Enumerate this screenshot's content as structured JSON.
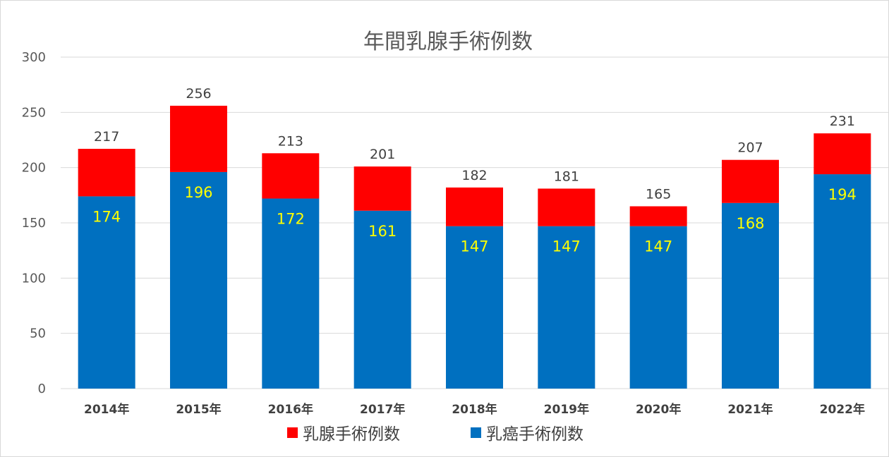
{
  "chart_data": {
    "type": "bar",
    "stacked": true,
    "title": "年間乳腺手術例数",
    "categories": [
      "2014年",
      "2015年",
      "2016年",
      "2017年",
      "2018年",
      "2019年",
      "2020年",
      "2021年",
      "2022年"
    ],
    "series": [
      {
        "name": "乳癌手術例数",
        "color": "#0070c0",
        "values": [
          174,
          196,
          172,
          161,
          147,
          147,
          147,
          168,
          194
        ]
      },
      {
        "name": "乳腺手術例数",
        "color": "#ff0000",
        "values": [
          43,
          60,
          41,
          40,
          35,
          34,
          18,
          39,
          37
        ]
      }
    ],
    "totals": [
      217,
      256,
      213,
      201,
      182,
      181,
      165,
      207,
      231
    ],
    "ylim": [
      0,
      300
    ],
    "yticks": [
      0,
      50,
      100,
      150,
      200,
      250,
      300
    ],
    "grid": true,
    "legend_position": "bottom",
    "legend": [
      {
        "name": "乳腺手術例数",
        "color": "#ff0000"
      },
      {
        "name": "乳癌手術例数",
        "color": "#0070c0"
      }
    ],
    "inner_label_color": "#ffff00"
  }
}
